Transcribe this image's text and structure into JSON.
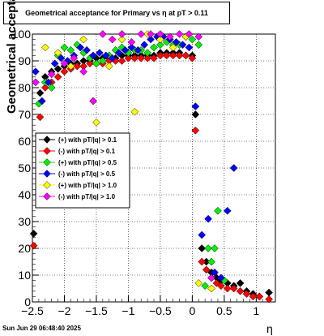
{
  "chart_data": {
    "type": "scatter",
    "title": "Geometrical acceptance for Primary vs    η  at pT > 0.11",
    "xlabel": "η",
    "ylabel": "Geometrical acceptance (%)",
    "xlim": [
      -2.5,
      1.3
    ],
    "ylim": [
      0,
      100
    ],
    "x_ticks": [
      "−2.5",
      "−2",
      "−1.5",
      "−1",
      "−0.5",
      "0",
      "0.5",
      "1"
    ],
    "y_ticks": [
      "0",
      "10",
      "20",
      "30",
      "40",
      "50",
      "60",
      "70",
      "80",
      "90",
      "100"
    ],
    "grid": true,
    "legend_position": "middle-left",
    "series": [
      {
        "name": "(+) with pT/|q| > 0.1",
        "color": "#000000",
        "x": [
          -2.48,
          -2.38,
          -2.3,
          -2.2,
          -2.1,
          -2.0,
          -1.9,
          -1.8,
          -1.7,
          -1.6,
          -1.5,
          -1.4,
          -1.3,
          -1.2,
          -1.1,
          -1.0,
          -0.9,
          -0.8,
          -0.7,
          -0.6,
          -0.5,
          -0.4,
          -0.3,
          -0.2,
          -0.1,
          0.0,
          0.05,
          0.15,
          0.22,
          0.3,
          0.38,
          0.45,
          0.55,
          0.65,
          0.75,
          0.85,
          0.95,
          1.05,
          1.2
        ],
        "y": [
          25.5,
          78,
          84,
          86,
          87,
          88,
          89,
          89,
          90,
          90,
          91,
          91,
          91,
          91,
          92,
          92,
          92,
          92,
          92,
          92,
          93,
          93,
          93,
          93,
          92,
          92,
          70,
          20,
          15,
          11,
          9,
          8,
          7,
          6,
          7,
          4,
          3,
          2,
          3.5
        ]
      },
      {
        "name": "(-) with pT/|q| > 0.1",
        "color": "#ff0000",
        "x": [
          -2.48,
          -2.38,
          -2.3,
          -2.2,
          -2.1,
          -2.0,
          -1.9,
          -1.8,
          -1.7,
          -1.6,
          -1.5,
          -1.4,
          -1.3,
          -1.2,
          -1.1,
          -1.0,
          -0.9,
          -0.8,
          -0.7,
          -0.6,
          -0.5,
          -0.4,
          -0.3,
          -0.2,
          -0.1,
          0.0,
          0.05,
          0.15,
          0.22,
          0.3,
          0.38,
          0.45,
          0.55,
          0.65,
          0.75,
          0.85,
          0.95,
          1.05,
          1.2
        ],
        "y": [
          21,
          69,
          80,
          82,
          84,
          86,
          87,
          88,
          88,
          89,
          89,
          89,
          90,
          90,
          90,
          91,
          91,
          91,
          91,
          91,
          92,
          92,
          92,
          92,
          92,
          91,
          64,
          15,
          12,
          9,
          7,
          6,
          5,
          5,
          4,
          3,
          2,
          2,
          1
        ]
      },
      {
        "name": "(+) with pT/|q| > 0.5",
        "color": "#00ee00",
        "x": [
          -2.4,
          -2.3,
          -2.2,
          -2.1,
          -2.0,
          -1.9,
          -1.8,
          -1.7,
          -1.6,
          -1.5,
          -1.4,
          -1.3,
          -1.2,
          -1.1,
          -1.0,
          -0.9,
          -0.8,
          -0.7,
          -0.6,
          -0.5,
          -0.4,
          -0.3,
          -0.2,
          -0.1,
          0.0,
          0.1,
          0.2,
          0.25,
          0.3,
          0.35,
          0.4,
          0.5
        ],
        "y": [
          74,
          82,
          80,
          92,
          95,
          94,
          96,
          93,
          91,
          89,
          90,
          92,
          94,
          95,
          93,
          94,
          94,
          93,
          95,
          96,
          97,
          96,
          96,
          99,
          98,
          96,
          6,
          20,
          15,
          20,
          34,
          8
        ]
      },
      {
        "name": "(-) with pT/|q| > 0.5",
        "color": "#0000ff",
        "x": [
          -2.45,
          -2.35,
          -2.25,
          -2.15,
          -2.05,
          -1.95,
          -1.85,
          -1.75,
          -1.65,
          -1.55,
          -1.45,
          -1.35,
          -1.25,
          -1.15,
          -1.05,
          -0.95,
          -0.85,
          -0.75,
          -0.65,
          -0.55,
          -0.45,
          -0.35,
          -0.25,
          -0.15,
          -0.05,
          0.05,
          0.15,
          0.25,
          0.35,
          0.45,
          0.55,
          0.65
        ],
        "y": [
          86,
          75,
          82,
          89,
          91,
          90,
          92,
          95,
          94,
          92,
          93,
          92,
          91,
          93,
          94,
          95,
          94,
          96,
          98,
          99,
          99,
          98,
          97,
          96,
          95,
          73,
          25,
          31,
          11,
          9,
          34,
          50
        ]
      },
      {
        "name": "(+) with pT/|q| > 1.0",
        "color": "#ffff00",
        "x": [
          -2.3,
          -2.1,
          -1.9,
          -1.7,
          -1.5,
          -1.3,
          -1.1,
          -0.9,
          -0.7,
          -0.5,
          -0.3,
          -0.1,
          0.1,
          0.3
        ],
        "y": [
          95,
          93,
          88,
          98,
          67,
          88,
          98,
          71,
          100,
          98,
          95,
          99,
          7,
          5
        ]
      },
      {
        "name": "(-) with pT/|q| > 1.0",
        "color": "#ff00ff",
        "x": [
          -2.45,
          -2.2,
          -2.0,
          -1.85,
          -1.7,
          -1.55,
          -1.4,
          -1.25,
          -1.1,
          -0.95,
          -0.8,
          -0.65,
          -0.5,
          -0.35,
          -0.2,
          -0.05,
          0.1,
          0.3
        ],
        "y": [
          82,
          85,
          89,
          91,
          86,
          75,
          100,
          98,
          100,
          97,
          100,
          100,
          100,
          99,
          100,
          100,
          99,
          9
        ]
      }
    ]
  },
  "timestamp": "Sun Jun 29 06:48:40 2025"
}
